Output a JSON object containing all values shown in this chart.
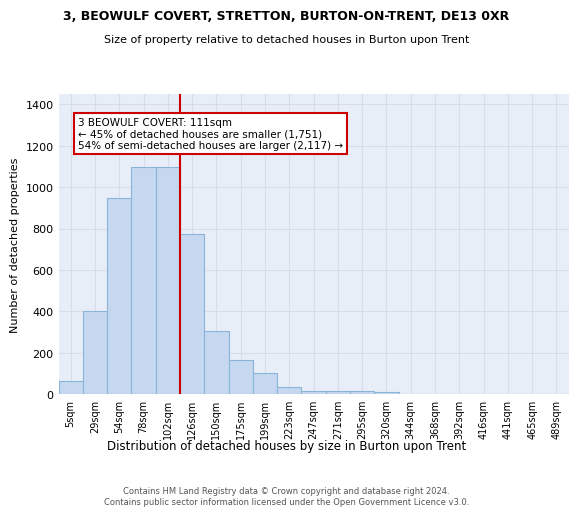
{
  "title_line1": "3, BEOWULF COVERT, STRETTON, BURTON-ON-TRENT, DE13 0XR",
  "title_line2": "Size of property relative to detached houses in Burton upon Trent",
  "xlabel": "Distribution of detached houses by size in Burton upon Trent",
  "ylabel": "Number of detached properties",
  "categories": [
    "5sqm",
    "29sqm",
    "54sqm",
    "78sqm",
    "102sqm",
    "126sqm",
    "150sqm",
    "175sqm",
    "199sqm",
    "223sqm",
    "247sqm",
    "271sqm",
    "295sqm",
    "320sqm",
    "344sqm",
    "368sqm",
    "392sqm",
    "416sqm",
    "441sqm",
    "465sqm",
    "489sqm"
  ],
  "bar_values": [
    65,
    400,
    950,
    1100,
    1100,
    775,
    305,
    165,
    100,
    35,
    17,
    17,
    15,
    10,
    0,
    0,
    0,
    0,
    0,
    0,
    0
  ],
  "bar_color": "#c5d8f0",
  "bar_edge_color": "#8ab4d8",
  "bar_width": 1.0,
  "vline_x": 4.5,
  "vline_color": "#cc0000",
  "annotation_text": "3 BEOWULF COVERT: 111sqm\n← 45% of detached houses are smaller (1,751)\n54% of semi-detached houses are larger (2,117) →",
  "annotation_box_color": "#ffffff",
  "annotation_box_edge_color": "#cc0000",
  "ylim": [
    0,
    1450
  ],
  "yticks": [
    0,
    200,
    400,
    600,
    800,
    1000,
    1200,
    1400
  ],
  "bg_color": "#e8eef8",
  "grid_color": "#d8dce8",
  "footer_line1": "Contains HM Land Registry data © Crown copyright and database right 2024.",
  "footer_line2": "Contains public sector information licensed under the Open Government Licence v3.0."
}
